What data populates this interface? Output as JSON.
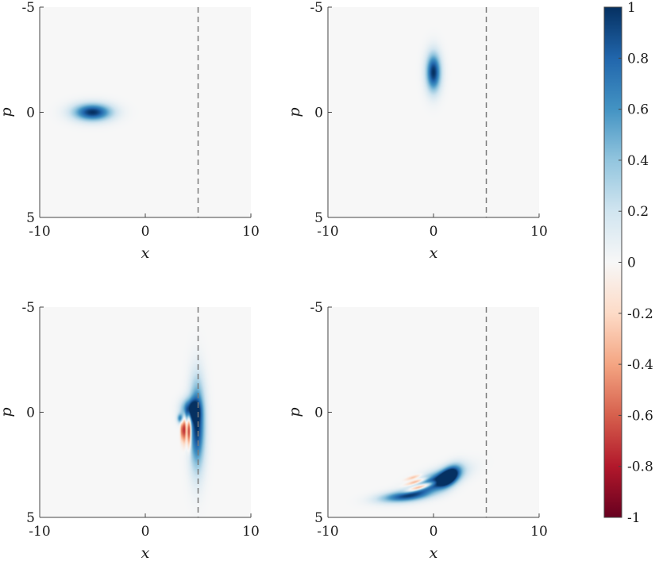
{
  "chart_data": [
    {
      "type": "heatmap",
      "title": "",
      "xlabel": "x",
      "ylabel": "p",
      "xlim": [
        -10,
        10
      ],
      "ylim": [
        -5,
        5
      ],
      "y_axis_reversed": true,
      "xticks": [
        "-10",
        "0",
        "10"
      ],
      "yticks": [
        "-5",
        "0",
        "5"
      ],
      "threshold_line_x": 5,
      "blobs": [
        {
          "x": -5.0,
          "p": 0.0,
          "sx": 1.25,
          "sp": 0.28,
          "amp": 1.0,
          "rot": 0
        }
      ]
    },
    {
      "type": "heatmap",
      "title": "",
      "xlabel": "x",
      "ylabel": "p",
      "xlim": [
        -10,
        10
      ],
      "ylim": [
        -5,
        5
      ],
      "y_axis_reversed": true,
      "xticks": [
        "-10",
        "0",
        "10"
      ],
      "yticks": [
        "-5",
        "0",
        "5"
      ],
      "threshold_line_x": 5,
      "blobs": [
        {
          "x": 0.0,
          "p": -1.9,
          "sx": 0.48,
          "sp": 0.62,
          "amp": 1.0,
          "rot": 0
        }
      ]
    },
    {
      "type": "heatmap",
      "title": "",
      "xlabel": "x",
      "ylabel": "p",
      "xlim": [
        -10,
        10
      ],
      "ylim": [
        -5,
        5
      ],
      "y_axis_reversed": true,
      "xticks": [
        "-10",
        "0",
        "10"
      ],
      "yticks": [
        "-5",
        "0",
        "5"
      ],
      "threshold_line_x": 5,
      "blobs": [
        {
          "x": 4.9,
          "p": 0.6,
          "sx": 0.5,
          "sp": 1.4,
          "amp": 1.0,
          "rot": 0
        },
        {
          "x": 4.2,
          "p": -0.1,
          "sx": 0.55,
          "sp": 0.35,
          "amp": 0.9,
          "rot": 0
        },
        {
          "x": 3.7,
          "p": 0.8,
          "sx": 0.12,
          "sp": 0.45,
          "amp": -0.8,
          "rot": 0
        },
        {
          "x": 4.15,
          "p": 0.85,
          "sx": 0.14,
          "sp": 0.55,
          "amp": -1.0,
          "rot": 0
        },
        {
          "x": 3.45,
          "p": 0.85,
          "sx": 0.1,
          "sp": 0.35,
          "amp": -0.5,
          "rot": 0
        },
        {
          "x": 3.3,
          "p": 0.3,
          "sx": 0.2,
          "sp": 0.15,
          "amp": 0.6,
          "rot": 0
        }
      ]
    },
    {
      "type": "heatmap",
      "title": "",
      "xlabel": "x",
      "ylabel": "p",
      "xlim": [
        -10,
        10
      ],
      "ylim": [
        -5,
        5
      ],
      "y_axis_reversed": true,
      "xticks": [
        "-10",
        "0",
        "10"
      ],
      "yticks": [
        "-5",
        "0",
        "5"
      ],
      "threshold_line_x": 5,
      "blobs": [
        {
          "x": 0.2,
          "p": 3.3,
          "sx": 1.6,
          "sp": 0.3,
          "amp": 1.0,
          "rot": -0.18
        },
        {
          "x": -2.8,
          "p": 4.0,
          "sx": 1.6,
          "sp": 0.18,
          "amp": 0.8,
          "rot": -0.05
        },
        {
          "x": 1.5,
          "p": 3.05,
          "sx": 0.7,
          "sp": 0.3,
          "amp": 1.0,
          "rot": -0.3
        },
        {
          "x": -1.2,
          "p": 3.55,
          "sx": 0.9,
          "sp": 0.09,
          "amp": -1.0,
          "rot": -0.15
        },
        {
          "x": -1.6,
          "p": 3.3,
          "sx": 0.7,
          "sp": 0.07,
          "amp": -0.6,
          "rot": -0.15
        },
        {
          "x": -1.9,
          "p": 3.1,
          "sx": 0.5,
          "sp": 0.06,
          "amp": -0.35,
          "rot": -0.15
        }
      ]
    }
  ],
  "colorbar": {
    "min": -1,
    "max": 1,
    "tick_labels": [
      "1",
      "0.8",
      "0.6",
      "0.4",
      "0.2",
      "0",
      "-0.2",
      "-0.4",
      "-0.6",
      "-0.8",
      "-1"
    ],
    "tick_values": [
      1,
      0.8,
      0.6,
      0.4,
      0.2,
      0,
      -0.2,
      -0.4,
      -0.6,
      -0.8,
      -1
    ],
    "color_stops": [
      "#67001f",
      "#b2182b",
      "#d6604d",
      "#f4a582",
      "#fddbc7",
      "#f7f7f7",
      "#d1e5f0",
      "#92c5de",
      "#4393c3",
      "#2166ac",
      "#053061"
    ]
  },
  "colors": {
    "background_field": "#f7f7f7",
    "axis": "#444444",
    "threshold_line": "#7a7a7a"
  }
}
